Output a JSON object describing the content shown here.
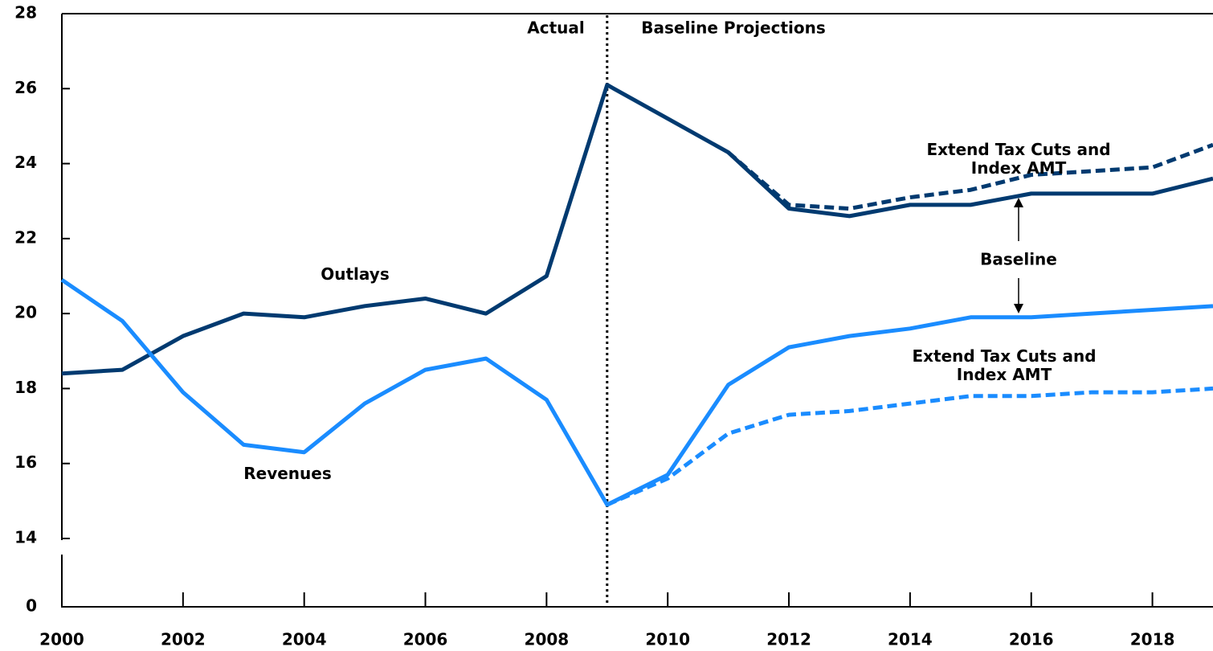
{
  "chart_data": {
    "type": "line",
    "x": [
      2000,
      2001,
      2002,
      2003,
      2004,
      2005,
      2006,
      2007,
      2008,
      2009,
      2010,
      2011,
      2012,
      2013,
      2014,
      2015,
      2016,
      2017,
      2018,
      2019
    ],
    "series": [
      {
        "name": "Outlays",
        "color": "#003a70",
        "dashed": false,
        "values": [
          18.4,
          18.5,
          19.4,
          20.0,
          19.9,
          20.2,
          20.4,
          20.0,
          21.0,
          26.1,
          25.2,
          24.3,
          22.8,
          22.6,
          22.9,
          22.9,
          23.2,
          23.2,
          23.2,
          23.6
        ]
      },
      {
        "name": "Extend Tax Cuts and Index AMT",
        "color": "#003a70",
        "dashed": true,
        "values": [
          null,
          null,
          null,
          null,
          null,
          null,
          null,
          null,
          null,
          null,
          null,
          24.3,
          22.9,
          22.8,
          23.1,
          23.3,
          23.7,
          23.8,
          23.9,
          24.5
        ]
      },
      {
        "name": "Revenues",
        "color": "#1a8cff",
        "dashed": false,
        "values": [
          20.9,
          19.8,
          17.9,
          16.5,
          16.3,
          17.6,
          18.5,
          18.8,
          17.7,
          14.9,
          15.7,
          18.1,
          19.1,
          19.4,
          19.6,
          19.9,
          19.9,
          20.0,
          20.1,
          20.2
        ]
      },
      {
        "name": "Extend Tax Cuts and Index AMT",
        "color": "#1a8cff",
        "dashed": true,
        "values": [
          null,
          null,
          null,
          null,
          null,
          null,
          null,
          null,
          null,
          14.9,
          15.6,
          16.8,
          17.3,
          17.4,
          17.6,
          17.8,
          17.8,
          17.9,
          17.9,
          18.0
        ]
      }
    ],
    "annotations": {
      "actual": "Actual",
      "projections": "Baseline Projections",
      "baseline": "Baseline"
    },
    "projection_start": 2009,
    "xlim": [
      2000,
      2019
    ],
    "xticks": [
      2000,
      2002,
      2004,
      2006,
      2008,
      2010,
      2012,
      2014,
      2016,
      2018
    ],
    "ylim": [
      14,
      28
    ],
    "yticks": [
      0,
      14,
      16,
      18,
      20,
      22,
      24,
      26,
      28
    ],
    "axis_break": true
  }
}
